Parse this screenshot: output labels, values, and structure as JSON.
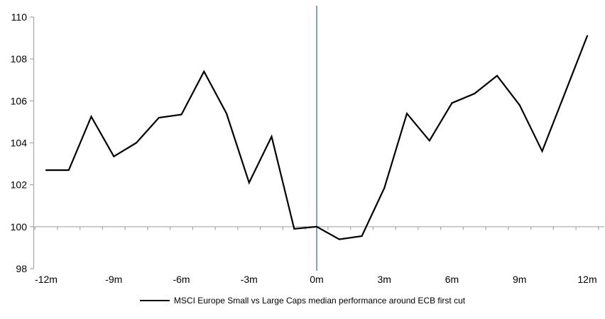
{
  "chart": {
    "legend_label": "MSCI Europe Small vs Large Caps median performance around ECB first cut"
  },
  "chart_data": {
    "type": "line",
    "title": "",
    "categories": [
      "-12m",
      "-11m",
      "-10m",
      "-9m",
      "-8m",
      "-7m",
      "-6m",
      "-5m",
      "-4m",
      "-3m",
      "-2m",
      "-1m",
      "0m",
      "1m",
      "2m",
      "3m",
      "4m",
      "5m",
      "6m",
      "7m",
      "8m",
      "9m",
      "10m",
      "11m",
      "12m"
    ],
    "series": [
      {
        "name": "MSCI Europe Small vs Large Caps median performance around ECB first cut",
        "values": [
          102.7,
          102.7,
          105.25,
          103.35,
          104.0,
          105.2,
          105.35,
          107.4,
          105.4,
          102.1,
          104.3,
          99.9,
          100.0,
          99.4,
          99.55,
          101.85,
          105.4,
          104.1,
          105.9,
          106.35,
          107.2,
          105.8,
          103.6,
          106.35,
          109.1
        ]
      }
    ],
    "xlabel": "",
    "ylabel": "",
    "ylim": [
      98,
      110
    ],
    "y_ticks": [
      110,
      108,
      106,
      104,
      102,
      100,
      98
    ],
    "x_labels_shown": [
      "-12m",
      "-9m",
      "-6m",
      "-3m",
      "0m",
      "3m",
      "6m",
      "9m",
      "12m"
    ],
    "x_axis_cross_value": 100,
    "event_line_category": "0m",
    "grid": false,
    "legend_position": "bottom",
    "colors": {
      "series": "#000000",
      "event_line": "#7DA3D1",
      "axis": "#A6A6A6",
      "text": "#000000"
    }
  }
}
